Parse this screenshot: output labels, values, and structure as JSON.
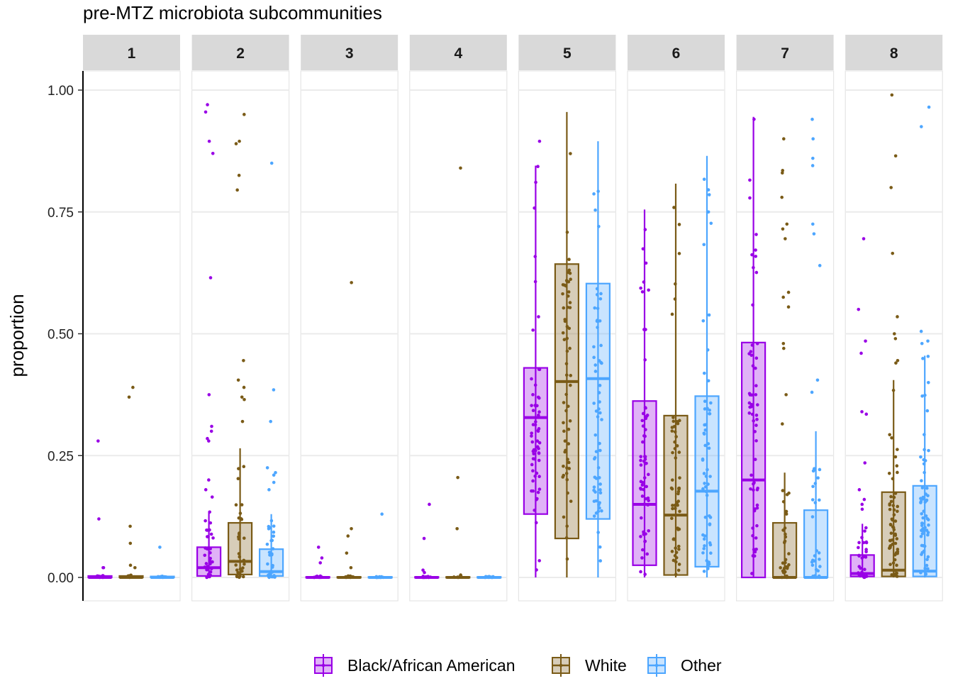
{
  "colors": {
    "Black/African American": "#9900E6",
    "White": "#7A5B17",
    "Other": "#4DA6FF"
  },
  "chart_data": {
    "type": "box",
    "title": "pre-MTZ microbiota subcommunities",
    "xlabel": "",
    "ylabel": "proportion",
    "ylim": [
      0,
      1
    ],
    "yticks": [
      "0.00",
      "0.25",
      "0.50",
      "0.75",
      "1.00"
    ],
    "grid": "horizontal",
    "legend_position": "bottom",
    "facets": [
      "1",
      "2",
      "3",
      "4",
      "5",
      "6",
      "7",
      "8"
    ],
    "series": [
      {
        "name": "Black/African American",
        "color": "#9900E6"
      },
      {
        "name": "White",
        "color": "#7A5B17"
      },
      {
        "name": "Other",
        "color": "#4DA6FF"
      }
    ],
    "panels": [
      {
        "facet": "1",
        "boxes": [
          {
            "group": "Black/African American",
            "q1": 0,
            "median": 0,
            "q3": 0.003,
            "whisker_low": 0,
            "whisker_high": 0.005,
            "outliers": [
              0.28,
              0.12,
              0.02,
              0.02
            ]
          },
          {
            "group": "White",
            "q1": 0,
            "median": 0,
            "q3": 0.003,
            "whisker_low": 0,
            "whisker_high": 0.005,
            "outliers": [
              0.39,
              0.37,
              0.105,
              0.07,
              0.025,
              0.02
            ]
          },
          {
            "group": "Other",
            "q1": 0,
            "median": 0,
            "q3": 0.002,
            "whisker_low": 0,
            "whisker_high": 0.004,
            "outliers": [
              0.062
            ]
          }
        ]
      },
      {
        "facet": "2",
        "boxes": [
          {
            "group": "Black/African American",
            "q1": 0.003,
            "median": 0.02,
            "q3": 0.062,
            "whisker_low": 0,
            "whisker_high": 0.135,
            "outliers": [
              0.97,
              0.955,
              0.895,
              0.87,
              0.615,
              0.375,
              0.31,
              0.3,
              0.285,
              0.28,
              0.2,
              0.18,
              0.165
            ]
          },
          {
            "group": "White",
            "q1": 0.006,
            "median": 0.033,
            "q3": 0.112,
            "whisker_low": 0,
            "whisker_high": 0.265,
            "outliers": [
              0.95,
              0.89,
              0.895,
              0.825,
              0.795,
              0.445,
              0.405,
              0.39,
              0.37,
              0.365,
              0.32
            ]
          },
          {
            "group": "Other",
            "q1": 0.003,
            "median": 0.012,
            "q3": 0.058,
            "whisker_low": 0,
            "whisker_high": 0.13,
            "outliers": [
              0.85,
              0.385,
              0.32,
              0.225,
              0.215,
              0.21,
              0.195,
              0.18
            ]
          }
        ]
      },
      {
        "facet": "3",
        "boxes": [
          {
            "group": "Black/African American",
            "q1": 0,
            "median": 0,
            "q3": 0.001,
            "whisker_low": 0,
            "whisker_high": 0.003,
            "outliers": [
              0.062,
              0.04,
              0.03
            ]
          },
          {
            "group": "White",
            "q1": 0,
            "median": 0,
            "q3": 0.001,
            "whisker_low": 0,
            "whisker_high": 0.003,
            "outliers": [
              0.605,
              0.1,
              0.085,
              0.05,
              0.02
            ]
          },
          {
            "group": "Other",
            "q1": 0,
            "median": 0,
            "q3": 0.001,
            "whisker_low": 0,
            "whisker_high": 0.002,
            "outliers": [
              0.13
            ]
          }
        ]
      },
      {
        "facet": "4",
        "boxes": [
          {
            "group": "Black/African American",
            "q1": 0,
            "median": 0,
            "q3": 0.001,
            "whisker_low": 0,
            "whisker_high": 0.003,
            "outliers": [
              0.15,
              0.08,
              0.015,
              0.01
            ]
          },
          {
            "group": "White",
            "q1": 0,
            "median": 0,
            "q3": 0.001,
            "whisker_low": 0,
            "whisker_high": 0.003,
            "outliers": [
              0.84,
              0.205,
              0.1,
              0.005
            ]
          },
          {
            "group": "Other",
            "q1": 0,
            "median": 0,
            "q3": 0.001,
            "whisker_low": 0,
            "whisker_high": 0.002,
            "outliers": []
          }
        ]
      },
      {
        "facet": "5",
        "boxes": [
          {
            "group": "Black/African American",
            "q1": 0.13,
            "median": 0.328,
            "q3": 0.43,
            "whisker_low": 0,
            "whisker_high": 0.845,
            "outliers": [
              0.895
            ]
          },
          {
            "group": "White",
            "q1": 0.08,
            "median": 0.402,
            "q3": 0.643,
            "whisker_low": 0,
            "whisker_high": 0.955,
            "outliers": []
          },
          {
            "group": "Other",
            "q1": 0.12,
            "median": 0.408,
            "q3": 0.603,
            "whisker_low": 0,
            "whisker_high": 0.895,
            "outliers": []
          }
        ]
      },
      {
        "facet": "6",
        "boxes": [
          {
            "group": "Black/African American",
            "q1": 0.025,
            "median": 0.15,
            "q3": 0.362,
            "whisker_low": 0,
            "whisker_high": 0.755,
            "outliers": []
          },
          {
            "group": "White",
            "q1": 0.005,
            "median": 0.128,
            "q3": 0.332,
            "whisker_low": 0,
            "whisker_high": 0.808,
            "outliers": []
          },
          {
            "group": "Other",
            "q1": 0.022,
            "median": 0.177,
            "q3": 0.372,
            "whisker_low": 0,
            "whisker_high": 0.865,
            "outliers": []
          }
        ]
      },
      {
        "facet": "7",
        "boxes": [
          {
            "group": "Black/African American",
            "q1": 0,
            "median": 0.2,
            "q3": 0.482,
            "whisker_low": 0,
            "whisker_high": 0.945,
            "outliers": []
          },
          {
            "group": "White",
            "q1": 0,
            "median": 0,
            "q3": 0.112,
            "whisker_low": 0,
            "whisker_high": 0.215,
            "outliers": [
              0.9,
              0.835,
              0.83,
              0.78,
              0.725,
              0.715,
              0.695,
              0.585,
              0.575,
              0.555,
              0.48,
              0.47,
              0.375,
              0.315
            ]
          },
          {
            "group": "Other",
            "q1": 0,
            "median": 0,
            "q3": 0.138,
            "whisker_low": 0,
            "whisker_high": 0.3,
            "outliers": [
              0.94,
              0.9,
              0.86,
              0.845,
              0.725,
              0.705,
              0.64,
              0.405,
              0.38
            ]
          }
        ]
      },
      {
        "facet": "8",
        "boxes": [
          {
            "group": "Black/African American",
            "q1": 0.002,
            "median": 0.008,
            "q3": 0.046,
            "whisker_low": 0,
            "whisker_high": 0.11,
            "outliers": [
              0.695,
              0.55,
              0.485,
              0.46,
              0.34,
              0.335,
              0.235,
              0.18,
              0.16,
              0.15,
              0.14
            ]
          },
          {
            "group": "White",
            "q1": 0.002,
            "median": 0.015,
            "q3": 0.175,
            "whisker_low": 0,
            "whisker_high": 0.405,
            "outliers": [
              0.99,
              0.865,
              0.8,
              0.665,
              0.535,
              0.5,
              0.49,
              0.445,
              0.44
            ]
          },
          {
            "group": "Other",
            "q1": 0.002,
            "median": 0.013,
            "q3": 0.188,
            "whisker_low": 0,
            "whisker_high": 0.455,
            "outliers": [
              0.965,
              0.925,
              0.505,
              0.485,
              0.48
            ]
          }
        ]
      }
    ]
  }
}
